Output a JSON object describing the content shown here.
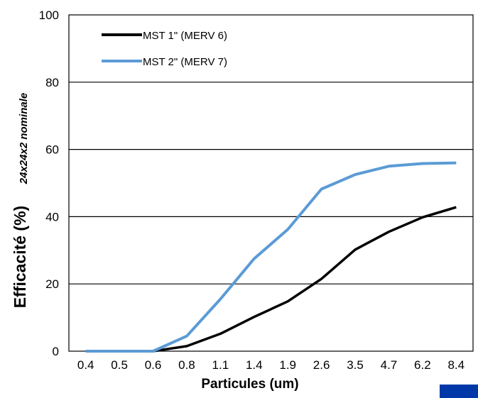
{
  "chart_data": {
    "type": "line",
    "categories": [
      "0.4",
      "0.5",
      "0.6",
      "0.8",
      "1.1",
      "1.4",
      "1.9",
      "2.6",
      "3.5",
      "4.7",
      "6.2",
      "8.4"
    ],
    "series": [
      {
        "name": "MST 1\" (MERV 6)",
        "color": "#000000",
        "values": [
          0,
          0,
          0,
          1.5,
          5.2,
          10.2,
          14.8,
          21.5,
          30.2,
          35.5,
          39.8,
          42.8
        ]
      },
      {
        "name": "MST 2\" (MERV 7)",
        "color": "#5b9bd5",
        "values": [
          0,
          0,
          0,
          4.5,
          15.5,
          27.5,
          36.2,
          48.2,
          52.5,
          55.0,
          55.8,
          56.0
        ]
      }
    ],
    "xlabel": "Particules (um)",
    "ylabel": "Efficacité (%)",
    "subtitle": "24x24x2 nominale",
    "ylim": [
      0,
      100
    ],
    "yticks": [
      0,
      20,
      40,
      60,
      80,
      100
    ],
    "grid": true,
    "legend_position": "top-left"
  },
  "decor": {
    "badge_color": "#0038a8"
  }
}
